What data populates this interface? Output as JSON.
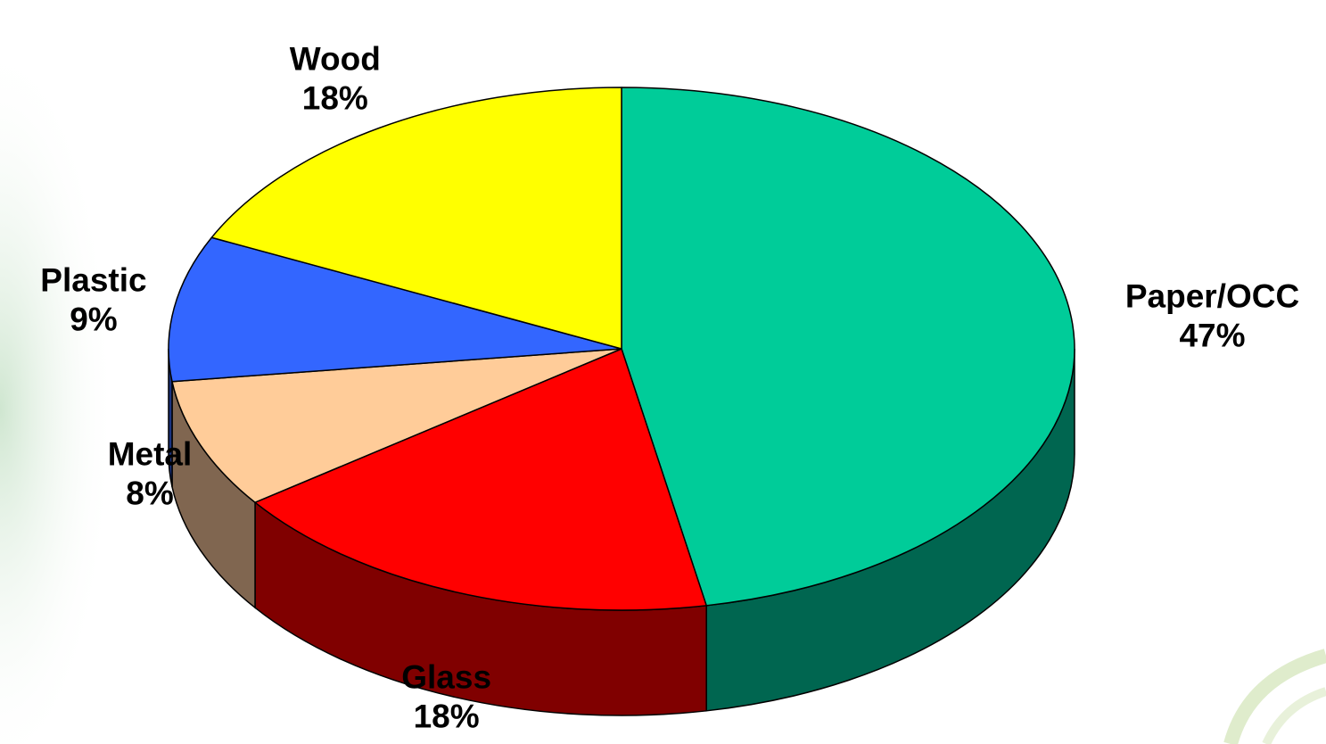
{
  "chart_data": {
    "type": "pie",
    "title": "",
    "slices": [
      {
        "label": "Paper/OCC",
        "value": 47,
        "value_text": "47%",
        "color": "#00CC99",
        "side_color": "#006650"
      },
      {
        "label": "Glass",
        "value": 18,
        "value_text": "18%",
        "color": "#FF0000",
        "side_color": "#800000"
      },
      {
        "label": "Metal",
        "value": 8,
        "value_text": "8%",
        "color": "#FFCC99",
        "side_color": "#806650"
      },
      {
        "label": "Plastic",
        "value": 9,
        "value_text": "9%",
        "color": "#3366FF",
        "side_color": "#1A3380"
      },
      {
        "label": "Wood",
        "value": 18,
        "value_text": "18%",
        "color": "#FFFF00",
        "side_color": "#808000"
      }
    ],
    "legend": "none",
    "style": "3d-pie"
  }
}
